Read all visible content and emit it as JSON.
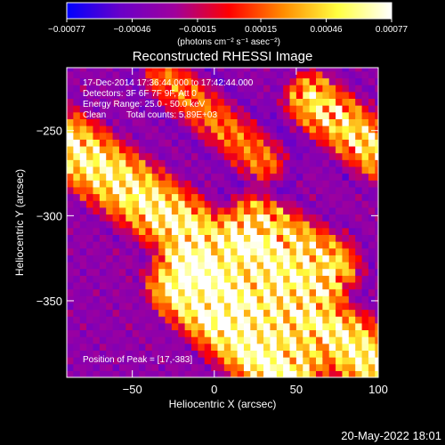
{
  "chart_data": {
    "type": "heatmap",
    "title": "Reconstructed RHESSI Image",
    "xlabel": "Heliocentric X (arcsec)",
    "ylabel": "Heliocentric Y (arcsec)",
    "xlim": [
      -90,
      100
    ],
    "ylim": [
      -395,
      -213
    ],
    "x_ticks": [
      -50,
      0,
      50,
      100
    ],
    "x_tick_labels": [
      "−50",
      "0",
      "50",
      "100"
    ],
    "y_ticks": [
      -250,
      -300,
      -350
    ],
    "y_tick_labels": [
      "−250",
      "−300",
      "−350"
    ],
    "colorbar": {
      "range": [
        -0.00077,
        0.00077
      ],
      "ticks": [
        -0.00077,
        -0.00046,
        -0.00015,
        0.00015,
        0.00046,
        0.00077
      ],
      "tick_labels": [
        "−0.00077",
        "−0.00046",
        "−0.00015",
        "0.00015",
        "0.00046",
        "0.00077"
      ],
      "unit_label": "(photons cm⁻² s⁻¹ asec⁻²)",
      "colors": [
        "#0000ff",
        "#6a00c8",
        "#a0009c",
        "#ff0000",
        "#ff8c00",
        "#ffff40",
        "#ffffff"
      ]
    },
    "info": {
      "time_range": "17-Dec-2014 17:36:44.000 to 17:42:44.000",
      "detectors": "Detectors: 3F 6F 7F 9F, Att 0",
      "energy_range": "Energy Range: 25.0 - 50.0 keV",
      "clean": "Clean",
      "total_counts": "Total counts: 5.89E+03",
      "peak": "Position of Peak = [17,-383]"
    },
    "footer_date": "20-May-2022 18:01",
    "sources": [
      {
        "x0": -90,
        "y0": -258,
        "x1": 100,
        "y1": -388,
        "strength": 0.8,
        "width": 14
      },
      {
        "x0": -30,
        "y0": -218,
        "x1": 30,
        "y1": -268,
        "strength": 0.45,
        "width": 10
      },
      {
        "x0": 60,
        "y0": -232,
        "x1": 100,
        "y1": -262,
        "strength": 0.85,
        "width": 12,
        "ring": true
      },
      {
        "x0": 25,
        "y0": -305,
        "x1": 70,
        "y1": -330,
        "strength": 0.9,
        "width": 13,
        "ring": true
      },
      {
        "x0": -20,
        "y0": -340,
        "x1": 45,
        "y1": -395,
        "strength": 0.95,
        "width": 14
      }
    ]
  }
}
